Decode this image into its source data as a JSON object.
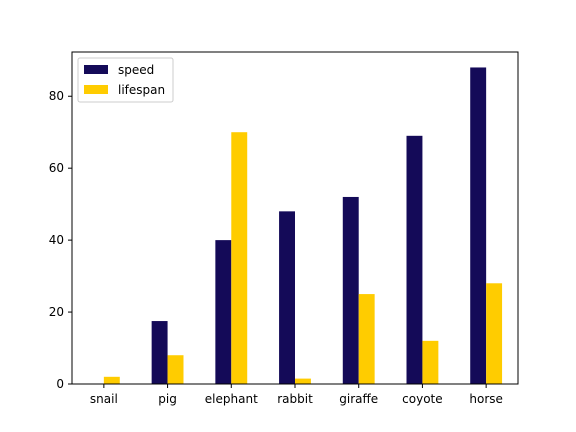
{
  "chart_data": {
    "type": "bar",
    "title": "",
    "xlabel": "",
    "ylabel": "",
    "categories": [
      "snail",
      "pig",
      "elephant",
      "rabbit",
      "giraffe",
      "coyote",
      "horse"
    ],
    "series": [
      {
        "name": "speed",
        "color": "#140a58",
        "values": [
          0.1,
          17.5,
          40,
          48,
          52,
          69,
          88
        ]
      },
      {
        "name": "lifespan",
        "color": "#ffcc00",
        "values": [
          2,
          8,
          70,
          1.5,
          25,
          12,
          28
        ]
      }
    ],
    "ylim": [
      0,
      92.3
    ],
    "yticks": [
      0,
      20,
      40,
      60,
      80
    ],
    "grid": false,
    "legend_position": "top-left"
  }
}
